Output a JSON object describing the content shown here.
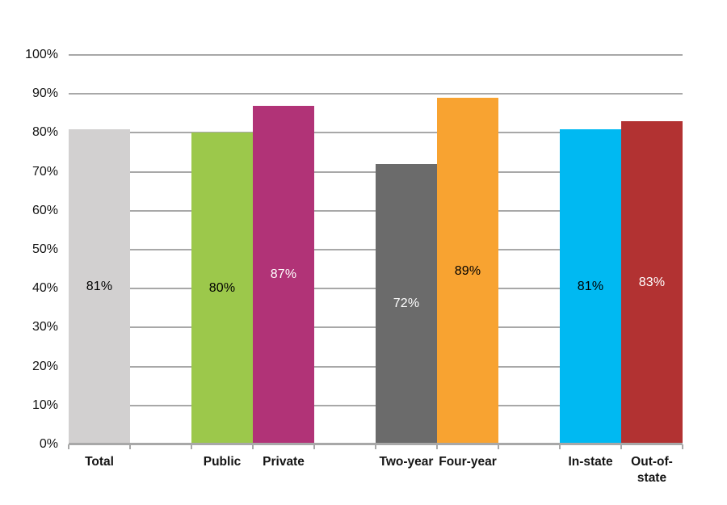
{
  "chart_data": {
    "type": "bar",
    "title": "",
    "xlabel": "",
    "ylabel": "",
    "categories": [
      "Total",
      "Public",
      "Private",
      "Two-year",
      "Four-year",
      "In-state",
      "Out-of-state"
    ],
    "values": [
      81,
      80,
      87,
      72,
      89,
      81,
      83
    ],
    "data_labels": [
      "81%",
      "80%",
      "87%",
      "72%",
      "89%",
      "81%",
      "83%"
    ],
    "bar_colors": [
      "#D2D0D0",
      "#9CC84B",
      "#B13377",
      "#6B6B6B",
      "#F8A331",
      "#00B9F2",
      "#B23232"
    ],
    "data_label_colors": [
      "#000000",
      "#000000",
      "#FFFFFF",
      "#FFFFFF",
      "#000000",
      "#000000",
      "#FFFFFF"
    ],
    "group_slots": [
      0,
      2,
      3,
      5,
      6,
      8,
      9
    ],
    "total_slots": 10,
    "ylim": [
      0,
      100
    ],
    "ytick_labels": [
      "0%",
      "10%",
      "20%",
      "30%",
      "40%",
      "50%",
      "60%",
      "70%",
      "80%",
      "90%",
      "100%"
    ],
    "grid": true,
    "gridline_color": "#A8A8A8",
    "legend": "none",
    "data_label_position": "center"
  }
}
